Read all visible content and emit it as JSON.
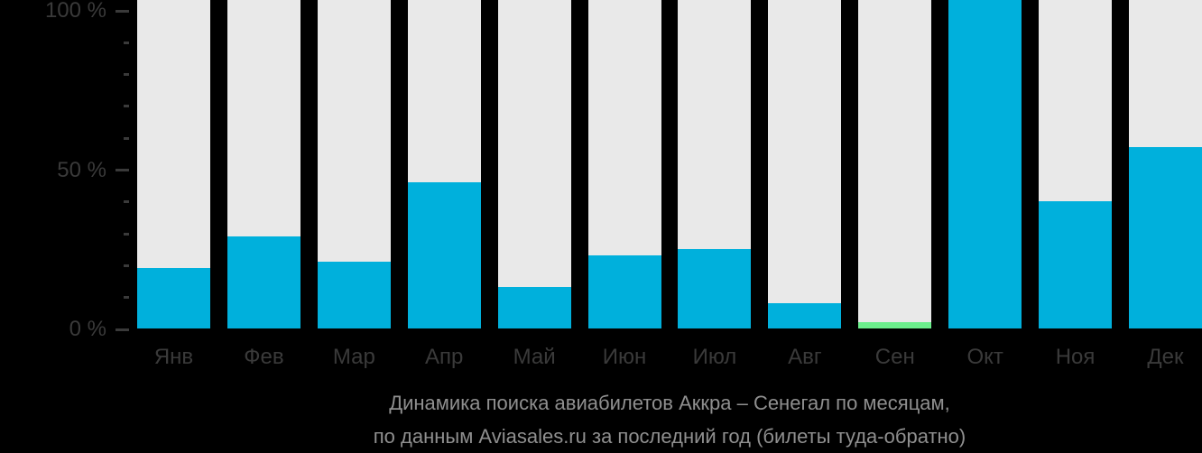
{
  "chart_data": {
    "type": "bar",
    "title": "Динамика поиска авиабилетов Аккра – Сенегал по месяцам,",
    "subtitle": "по данным Aviasales.ru за последний год (билеты туда-обратно)",
    "categories": [
      "Янв",
      "Фев",
      "Мар",
      "Апр",
      "Май",
      "Июн",
      "Июл",
      "Авг",
      "Сен",
      "Окт",
      "Ноя",
      "Дек"
    ],
    "values": [
      19,
      29,
      21,
      46,
      13,
      23,
      25,
      8,
      2,
      100,
      40,
      57
    ],
    "unit": "%",
    "highlight_month_index": 8,
    "xlabel": "",
    "ylabel": "",
    "ylim": [
      0,
      100
    ],
    "yticks": [
      {
        "value": 100,
        "label": "100 %"
      },
      {
        "value": 50,
        "label": "50 %"
      },
      {
        "value": 0,
        "label": "0 %"
      }
    ],
    "minor_ticks": [
      90,
      80,
      70,
      60,
      40,
      30,
      20,
      10
    ],
    "grid": false,
    "legend": false,
    "colors": {
      "background": "#000000",
      "track": "#e9e9e9",
      "bar": "#00b0dc",
      "highlight": "#6cee8c",
      "axis_text": "#3a3a3a",
      "axis_line": "#3a3a3a",
      "caption_text": "#8f8f8f"
    }
  }
}
